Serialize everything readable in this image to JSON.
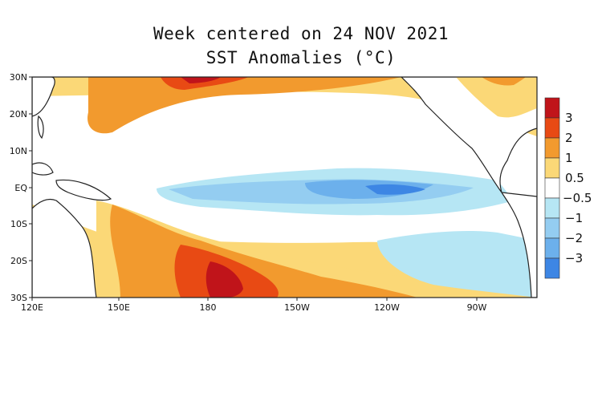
{
  "title": "Week centered on 24 NOV 2021",
  "subtitle": "SST Anomalies (°C)",
  "map": {
    "lat_labels": [
      "30N",
      "20N",
      "10N",
      "EQ",
      "10S",
      "20S",
      "30S"
    ],
    "lon_labels": [
      "120E",
      "150E",
      "180",
      "150W",
      "120W",
      "90W"
    ]
  },
  "colorbar": {
    "labels": [
      "3",
      "2",
      "1",
      "0.5",
      "−0.5",
      "−1",
      "−2",
      "−3"
    ],
    "colors": [
      "#c0141a",
      "#e84a14",
      "#f29a2e",
      "#fbd877",
      "#ffffff",
      "#b6e6f4",
      "#94cdf1",
      "#6cb0ec",
      "#3d86e4"
    ]
  }
}
